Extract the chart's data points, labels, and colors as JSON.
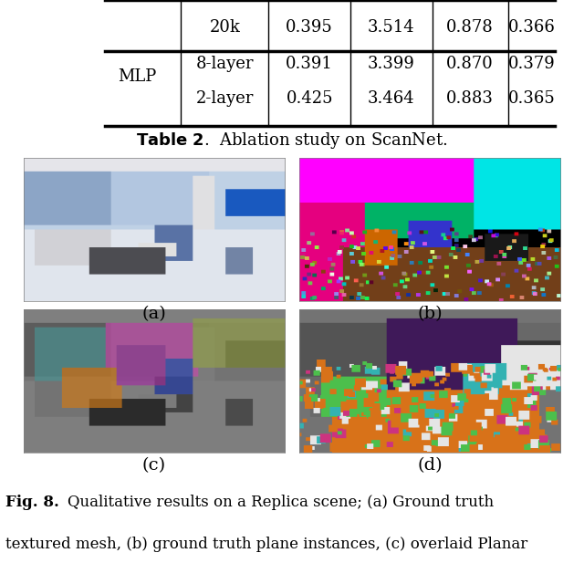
{
  "title": "Table 2. Ablation study on ScanNet.",
  "fig_caption_bold": "Fig. 8.",
  "fig_caption_normal": "  Qualitative results on a Replica scene; (a) Ground truth\ntextured mesh, (b) ground truth plane instances, (c) overlaid Planar",
  "table": {
    "row1": {
      "col1": "",
      "col2": "20k",
      "col3": "0.395",
      "col4": "3.514",
      "col5": "0.878",
      "col6": "0.366"
    },
    "row2": {
      "col1": "MLP",
      "col2": "8-layer",
      "col3": "0.391",
      "col4": "3.399",
      "col5": "0.870",
      "col6": "0.379"
    },
    "row3": {
      "col1": "",
      "col2": "2-layer",
      "col3": "0.425",
      "col4": "3.464",
      "col5": "0.883",
      "col6": "0.365"
    }
  },
  "subcaption_a": "(a)",
  "subcaption_b": "(b)",
  "subcaption_c": "(c)",
  "subcaption_d": "(d)",
  "bg_color": "#ffffff",
  "table_line_color": "#000000",
  "text_color": "#000000"
}
